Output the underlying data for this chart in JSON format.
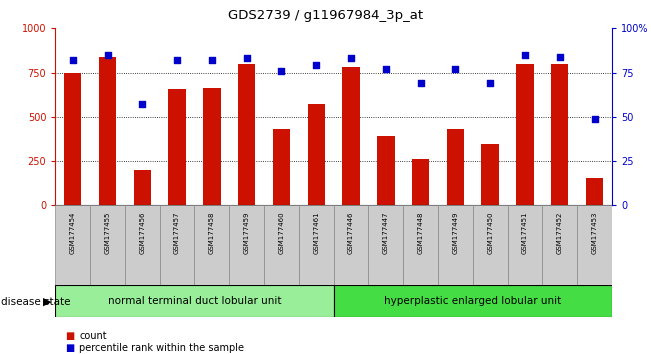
{
  "title": "GDS2739 / g11967984_3p_at",
  "samples": [
    "GSM177454",
    "GSM177455",
    "GSM177456",
    "GSM177457",
    "GSM177458",
    "GSM177459",
    "GSM177460",
    "GSM177461",
    "GSM177446",
    "GSM177447",
    "GSM177448",
    "GSM177449",
    "GSM177450",
    "GSM177451",
    "GSM177452",
    "GSM177453"
  ],
  "counts": [
    750,
    840,
    200,
    660,
    665,
    800,
    430,
    575,
    780,
    390,
    260,
    430,
    345,
    800,
    800,
    155
  ],
  "percentiles": [
    82,
    85,
    57,
    82,
    82,
    83,
    76,
    79,
    83,
    77,
    69,
    77,
    69,
    85,
    84,
    49
  ],
  "group1_label": "normal terminal duct lobular unit",
  "group2_label": "hyperplastic enlarged lobular unit",
  "group1_count": 8,
  "group2_count": 8,
  "bar_color": "#cc1100",
  "dot_color": "#0000cc",
  "ylim_left": [
    0,
    1000
  ],
  "ylim_right": [
    0,
    100
  ],
  "yticks_left": [
    0,
    250,
    500,
    750,
    1000
  ],
  "yticks_right": [
    0,
    25,
    50,
    75,
    100
  ],
  "yticklabels_left": [
    "0",
    "250",
    "500",
    "750",
    "1000"
  ],
  "yticklabels_right": [
    "0",
    "25",
    "50",
    "75",
    "100%"
  ],
  "legend_count_label": "count",
  "legend_pct_label": "percentile rank within the sample",
  "disease_state_label": "disease state",
  "group1_color": "#99ee99",
  "group2_color": "#44dd44",
  "label_bg": "#cccccc",
  "bar_width": 0.5,
  "dot_size": 22
}
